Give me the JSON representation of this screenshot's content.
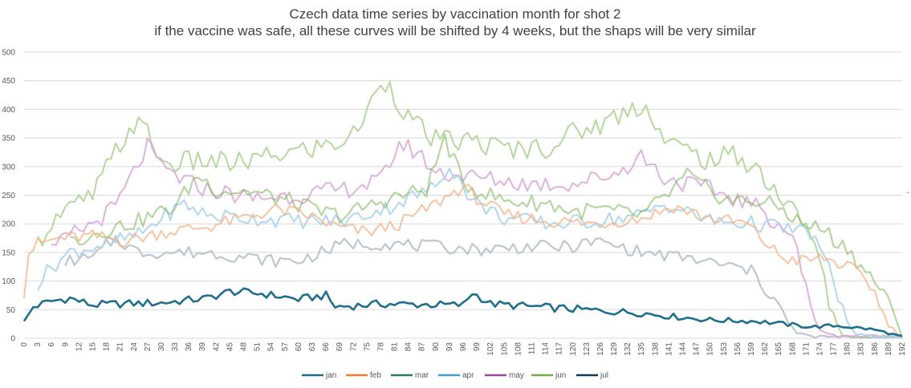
{
  "chart_data": {
    "type": "line",
    "title": "Czech data time series by vaccination month for shot 2",
    "subtitle": "if the vaccine was safe, all these curves will be shifted by 4 weeks, but the shaps will be very similar",
    "xlabel": "",
    "ylabel": "",
    "ylim": [
      0,
      500
    ],
    "yticks": [
      0,
      50,
      100,
      150,
      200,
      250,
      300,
      350,
      400,
      450,
      500
    ],
    "xlim": [
      0,
      192
    ],
    "xtick_step": 3,
    "grid": "horizontal",
    "legend_position": "bottom",
    "series": [
      {
        "name": "jan",
        "color": "#1f6e8c",
        "opacity": 1.0,
        "width": 2.6,
        "active": [
          0,
          192
        ],
        "keyframes": [
          [
            0,
            28
          ],
          [
            2,
            55
          ],
          [
            6,
            65
          ],
          [
            10,
            70
          ],
          [
            15,
            58
          ],
          [
            20,
            60
          ],
          [
            30,
            62
          ],
          [
            40,
            70
          ],
          [
            45,
            82
          ],
          [
            52,
            78
          ],
          [
            60,
            68
          ],
          [
            66,
            75
          ],
          [
            68,
            55
          ],
          [
            78,
            60
          ],
          [
            96,
            58
          ],
          [
            98,
            80
          ],
          [
            102,
            60
          ],
          [
            112,
            55
          ],
          [
            118,
            52
          ],
          [
            126,
            48
          ],
          [
            134,
            45
          ],
          [
            142,
            38
          ],
          [
            150,
            32
          ],
          [
            160,
            30
          ],
          [
            166,
            25
          ],
          [
            172,
            20
          ],
          [
            178,
            22
          ],
          [
            186,
            15
          ],
          [
            192,
            3
          ]
        ],
        "noise": 7
      },
      {
        "name": "feb",
        "color": "#f4b183",
        "opacity": 0.75,
        "width": 2.0,
        "active": [
          0,
          192
        ],
        "keyframes": [
          [
            0,
            80
          ],
          [
            1,
            150
          ],
          [
            3,
            165
          ],
          [
            8,
            175
          ],
          [
            15,
            178
          ],
          [
            22,
            170
          ],
          [
            30,
            185
          ],
          [
            40,
            195
          ],
          [
            48,
            210
          ],
          [
            55,
            225
          ],
          [
            62,
            215
          ],
          [
            68,
            195
          ],
          [
            75,
            185
          ],
          [
            82,
            200
          ],
          [
            90,
            235
          ],
          [
            96,
            265
          ],
          [
            99,
            245
          ],
          [
            105,
            215
          ],
          [
            115,
            205
          ],
          [
            125,
            200
          ],
          [
            135,
            210
          ],
          [
            142,
            230
          ],
          [
            150,
            210
          ],
          [
            158,
            200
          ],
          [
            163,
            160
          ],
          [
            166,
            140
          ],
          [
            170,
            135
          ],
          [
            175,
            140
          ],
          [
            180,
            125
          ],
          [
            184,
            105
          ],
          [
            186,
            80
          ],
          [
            188,
            40
          ],
          [
            190,
            15
          ],
          [
            192,
            5
          ]
        ],
        "noise": 12
      },
      {
        "name": "mar",
        "color": "#70ad47",
        "opacity": 0.5,
        "width": 2.2,
        "active": [
          10,
          192
        ],
        "keyframes": [
          [
            10,
            170
          ],
          [
            18,
            190
          ],
          [
            25,
            205
          ],
          [
            33,
            230
          ],
          [
            38,
            285
          ],
          [
            42,
            260
          ],
          [
            50,
            255
          ],
          [
            58,
            240
          ],
          [
            65,
            220
          ],
          [
            70,
            215
          ],
          [
            80,
            245
          ],
          [
            88,
            260
          ],
          [
            92,
            350
          ],
          [
            96,
            270
          ],
          [
            105,
            240
          ],
          [
            115,
            235
          ],
          [
            120,
            220
          ],
          [
            125,
            225
          ],
          [
            135,
            215
          ],
          [
            140,
            245
          ],
          [
            145,
            285
          ],
          [
            150,
            255
          ],
          [
            155,
            240
          ],
          [
            160,
            240
          ],
          [
            165,
            230
          ],
          [
            170,
            200
          ],
          [
            175,
            190
          ],
          [
            178,
            165
          ],
          [
            180,
            160
          ],
          [
            183,
            125
          ],
          [
            186,
            100
          ],
          [
            188,
            80
          ],
          [
            190,
            40
          ],
          [
            192,
            5
          ]
        ],
        "noise": 15
      },
      {
        "name": "apr",
        "color": "#a8d4ec",
        "opacity": 0.9,
        "width": 2.0,
        "active": [
          3,
          192
        ],
        "keyframes": [
          [
            3,
            95
          ],
          [
            6,
            125
          ],
          [
            10,
            150
          ],
          [
            18,
            165
          ],
          [
            25,
            180
          ],
          [
            30,
            210
          ],
          [
            35,
            235
          ],
          [
            40,
            215
          ],
          [
            50,
            210
          ],
          [
            60,
            205
          ],
          [
            70,
            205
          ],
          [
            80,
            230
          ],
          [
            90,
            265
          ],
          [
            93,
            305
          ],
          [
            98,
            240
          ],
          [
            105,
            210
          ],
          [
            115,
            200
          ],
          [
            125,
            205
          ],
          [
            135,
            215
          ],
          [
            140,
            235
          ],
          [
            150,
            205
          ],
          [
            160,
            200
          ],
          [
            168,
            190
          ],
          [
            172,
            185
          ],
          [
            175,
            140
          ],
          [
            178,
            75
          ],
          [
            180,
            30
          ],
          [
            182,
            5
          ],
          [
            192,
            2
          ]
        ],
        "noise": 14
      },
      {
        "name": "may",
        "color": "#d9a6d9",
        "opacity": 0.85,
        "width": 2.0,
        "active": [
          6,
          192
        ],
        "keyframes": [
          [
            6,
            150
          ],
          [
            10,
            180
          ],
          [
            15,
            200
          ],
          [
            20,
            230
          ],
          [
            24,
            290
          ],
          [
            27,
            335
          ],
          [
            30,
            300
          ],
          [
            35,
            275
          ],
          [
            40,
            260
          ],
          [
            50,
            245
          ],
          [
            60,
            250
          ],
          [
            70,
            260
          ],
          [
            78,
            275
          ],
          [
            82,
            340
          ],
          [
            86,
            325
          ],
          [
            90,
            290
          ],
          [
            100,
            280
          ],
          [
            110,
            270
          ],
          [
            120,
            270
          ],
          [
            130,
            290
          ],
          [
            135,
            320
          ],
          [
            140,
            280
          ],
          [
            145,
            270
          ],
          [
            150,
            260
          ],
          [
            155,
            245
          ],
          [
            160,
            230
          ],
          [
            165,
            200
          ],
          [
            168,
            180
          ],
          [
            170,
            120
          ],
          [
            172,
            50
          ],
          [
            174,
            20
          ],
          [
            176,
            5
          ],
          [
            192,
            2
          ]
        ],
        "noise": 16
      },
      {
        "name": "jun",
        "color": "#a9d18e",
        "opacity": 0.85,
        "width": 2.0,
        "active": [
          3,
          192
        ],
        "keyframes": [
          [
            3,
            165
          ],
          [
            6,
            205
          ],
          [
            10,
            225
          ],
          [
            15,
            250
          ],
          [
            20,
            325
          ],
          [
            24,
            375
          ],
          [
            27,
            360
          ],
          [
            30,
            305
          ],
          [
            40,
            310
          ],
          [
            45,
            305
          ],
          [
            50,
            310
          ],
          [
            55,
            320
          ],
          [
            62,
            330
          ],
          [
            68,
            340
          ],
          [
            72,
            355
          ],
          [
            76,
            410
          ],
          [
            78,
            455
          ],
          [
            80,
            440
          ],
          [
            84,
            385
          ],
          [
            90,
            345
          ],
          [
            98,
            345
          ],
          [
            105,
            330
          ],
          [
            115,
            335
          ],
          [
            120,
            360
          ],
          [
            125,
            370
          ],
          [
            130,
            390
          ],
          [
            135,
            410
          ],
          [
            137,
            395
          ],
          [
            140,
            345
          ],
          [
            150,
            310
          ],
          [
            155,
            320
          ],
          [
            160,
            300
          ],
          [
            163,
            270
          ],
          [
            166,
            240
          ],
          [
            169,
            215
          ],
          [
            172,
            190
          ],
          [
            174,
            130
          ],
          [
            176,
            60
          ],
          [
            178,
            15
          ],
          [
            180,
            3
          ],
          [
            192,
            2
          ]
        ],
        "noise": 20
      },
      {
        "name": "jul",
        "color": "#b8c4cc",
        "opacity": 0.95,
        "width": 2.2,
        "active": [
          9,
          192
        ],
        "keyframes": [
          [
            9,
            135
          ],
          [
            15,
            140
          ],
          [
            20,
            175
          ],
          [
            25,
            150
          ],
          [
            30,
            150
          ],
          [
            40,
            150
          ],
          [
            45,
            145
          ],
          [
            50,
            140
          ],
          [
            55,
            135
          ],
          [
            60,
            135
          ],
          [
            70,
            165
          ],
          [
            80,
            165
          ],
          [
            90,
            160
          ],
          [
            100,
            155
          ],
          [
            110,
            160
          ],
          [
            120,
            160
          ],
          [
            125,
            170
          ],
          [
            130,
            160
          ],
          [
            135,
            150
          ],
          [
            145,
            140
          ],
          [
            155,
            125
          ],
          [
            160,
            115
          ],
          [
            162,
            85
          ],
          [
            165,
            60
          ],
          [
            167,
            25
          ],
          [
            169,
            10
          ],
          [
            172,
            3
          ],
          [
            192,
            2
          ]
        ],
        "noise": 11
      }
    ]
  }
}
